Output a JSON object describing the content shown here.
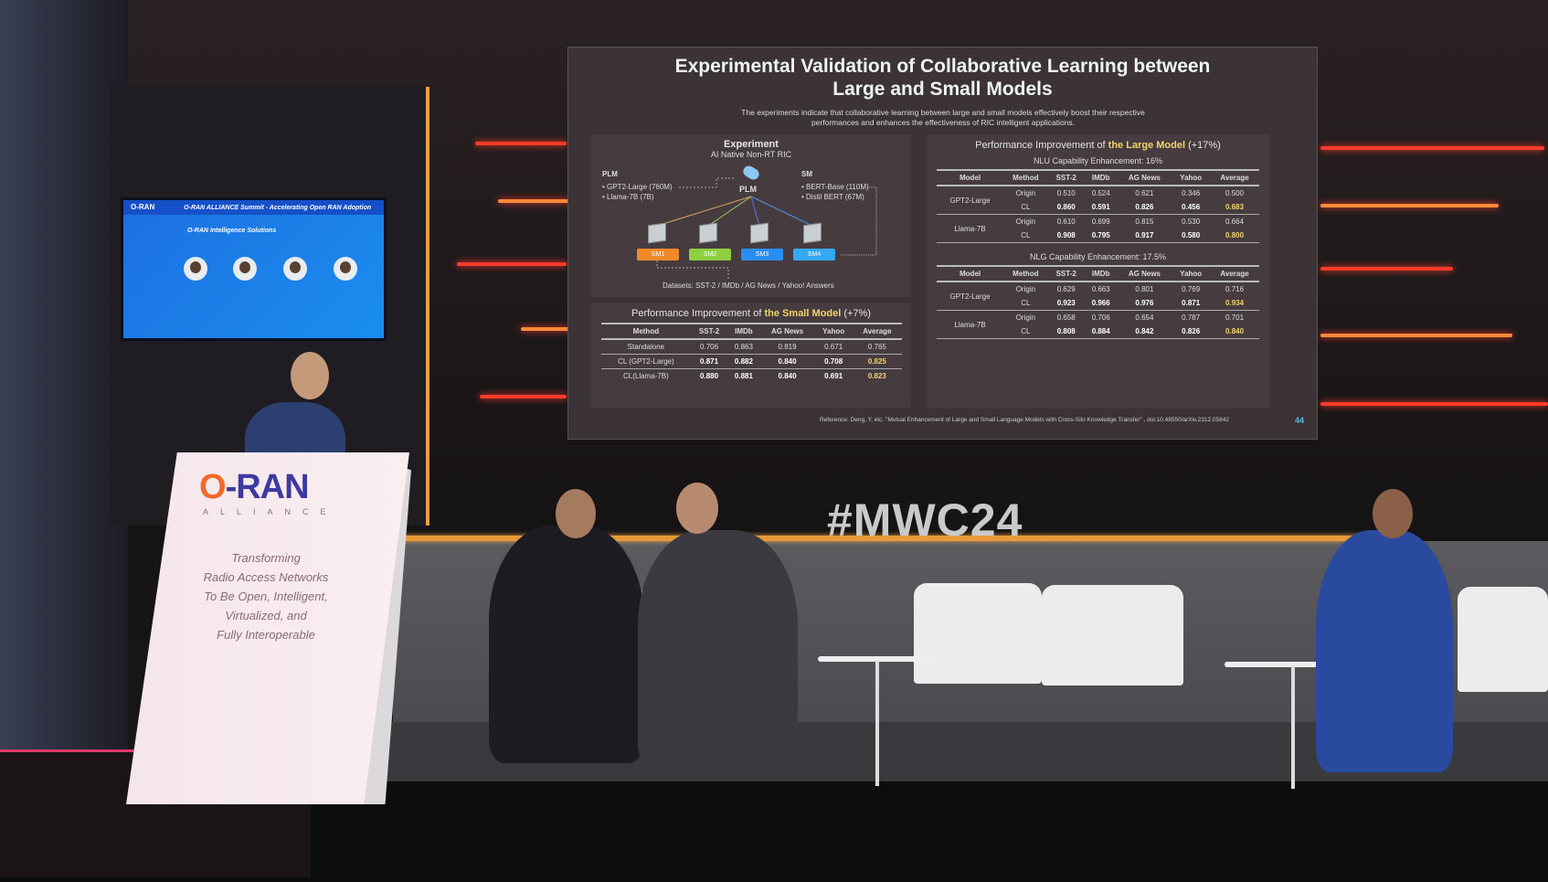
{
  "scene": {
    "hashtag": "#MWC24"
  },
  "slide": {
    "title_line1": "Experimental Validation of Collaborative Learning between",
    "title_line2": "Large and Small Models",
    "subtitle_line1": "The experiments indicate that collaborative learning between large and small models effectively boost their respective",
    "subtitle_line2": "performances and enhances the effectiveness of RIC intelligent applications.",
    "diagram": {
      "heading": "Experiment",
      "subheading": "AI Native Non-RT RIC",
      "plm_label": "PLM",
      "plm_items": [
        "GPT2-Large  (760M)",
        "Llama-7B  (7B)"
      ],
      "sm_label": "SM",
      "sm_items": [
        "BERT-Base  (110M)",
        "Distil BERT  (67M)"
      ],
      "center_label": "PLM",
      "sm_boxes": [
        {
          "label": "SM1",
          "color": "#f08a2a"
        },
        {
          "label": "SM2",
          "color": "#8fd040"
        },
        {
          "label": "SM3",
          "color": "#2a8ef0"
        },
        {
          "label": "SM4",
          "color": "#35a8f5"
        }
      ],
      "datasets": "Datasets: SST-2 / IMDb / AG News / Yahoo! Answers"
    },
    "small_model": {
      "title_pre": "Performance Improvement of ",
      "title_hl": "the Small Model",
      "title_post": " (+7%)",
      "headers": [
        "Method",
        "SST-2",
        "IMDb",
        "AG News",
        "Yahoo",
        "Average"
      ],
      "rows": [
        [
          "Standalone",
          "0.706",
          "0.863",
          "0.819",
          "0.671",
          "0.765"
        ],
        [
          "CL (GPT2-Large)",
          "0.871",
          "0.882",
          "0.840",
          "0.708",
          "0.825"
        ],
        [
          "CL(Llama-7B)",
          "0.880",
          "0.881",
          "0.840",
          "0.691",
          "0.823"
        ]
      ]
    },
    "large_model": {
      "title_pre": "Performance Improvement of ",
      "title_hl": "the Large Model",
      "title_post": " (+17%)",
      "headers": [
        "Model",
        "Method",
        "SST-2",
        "IMDb",
        "AG News",
        "Yahoo",
        "Average"
      ],
      "nlu": {
        "title": "NLU Capability Enhancement: 16%",
        "groups": [
          {
            "model": "GPT2-Large",
            "rows": [
              [
                "Origin",
                "0.510",
                "0.524",
                "0.621",
                "0.346",
                "0.500"
              ],
              [
                "CL",
                "0.860",
                "0.591",
                "0.826",
                "0.456",
                "0.683"
              ]
            ]
          },
          {
            "model": "Llama-7B",
            "rows": [
              [
                "Origin",
                "0.610",
                "0.699",
                "0.815",
                "0.530",
                "0.664"
              ],
              [
                "CL",
                "0.908",
                "0.795",
                "0.917",
                "0.580",
                "0.800"
              ]
            ]
          }
        ]
      },
      "nlg": {
        "title": "NLG Capability Enhancement: 17.5%",
        "groups": [
          {
            "model": "GPT2-Large",
            "rows": [
              [
                "Origin",
                "0.629",
                "0.663",
                "0.801",
                "0.769",
                "0.716"
              ],
              [
                "CL",
                "0.923",
                "0.966",
                "0.976",
                "0.871",
                "0.934"
              ]
            ]
          },
          {
            "model": "Llama-7B",
            "rows": [
              [
                "Origin",
                "0.658",
                "0.706",
                "0.654",
                "0.787",
                "0.701"
              ],
              [
                "CL",
                "0.808",
                "0.884",
                "0.842",
                "0.826",
                "0.840"
              ]
            ]
          }
        ]
      }
    },
    "reference": "Reference: Deng, Y, etc.   \"Mutual Enhancement of Large and Small Language Models with Cross-Silo Knowledge Transfer\"  , doi:10.48550/arXiv.2312.05842",
    "page_number": "44"
  },
  "side_screen": {
    "header": "O-RAN ALLIANCE Summit - Accelerating Open RAN Adoption",
    "logo": "O-RAN",
    "title": "O-RAN Intelligence Solutions"
  },
  "podium": {
    "logo_o": "O",
    "logo_rest": "-RAN",
    "alliance": "ALLIANCE",
    "tagline": [
      "Transforming",
      "Radio Access Networks",
      "To Be Open, Intelligent,",
      "Virtualized, and",
      "Fully Interoperable"
    ]
  },
  "colors": {
    "highlight": "#f2d36a",
    "neon": "#ff3a2a",
    "podium_logo": "#3d3aa0"
  }
}
